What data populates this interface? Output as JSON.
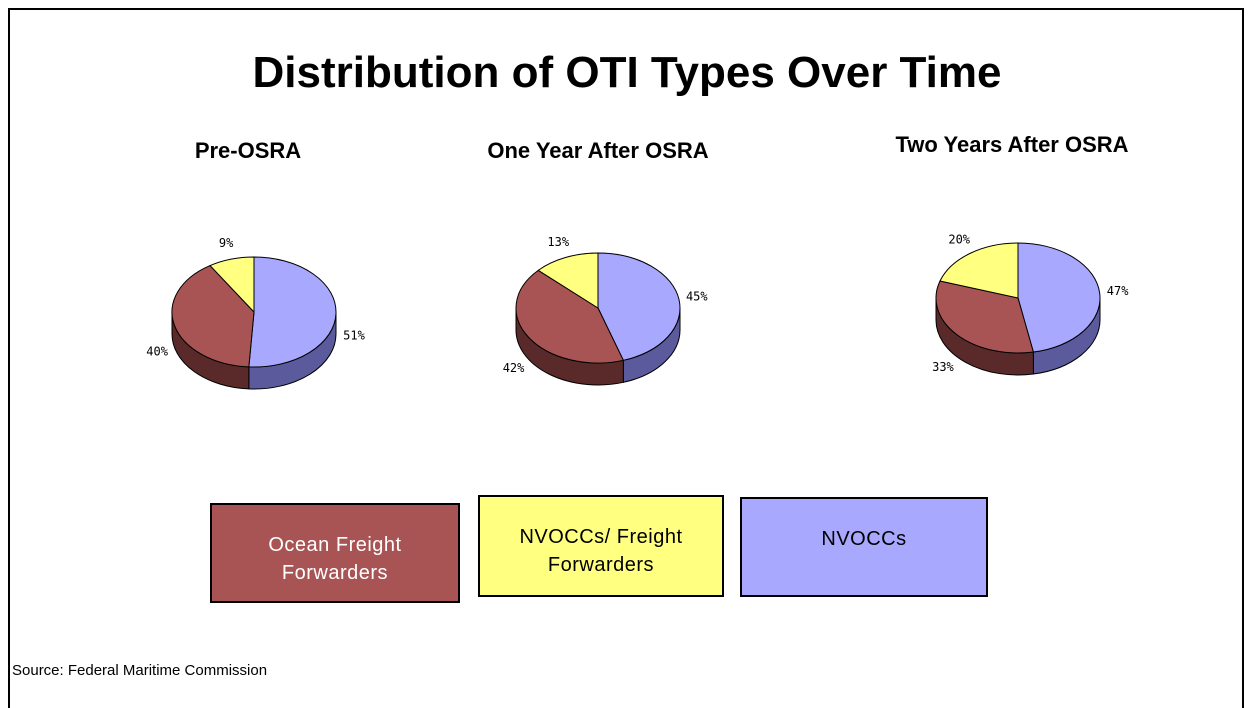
{
  "title": "Distribution of OTI Types Over Time",
  "legend": [
    {
      "name": "Ocean Freight Forwarders",
      "color": "#a85454",
      "side_color": "#5a2a2a",
      "text_color": "#ffffff"
    },
    {
      "name": "NVOCCs/ Freight Forwarders",
      "color": "#ffff80",
      "side_color": "#7a7a30",
      "text_color": "#000000"
    },
    {
      "name": "NVOCCs",
      "color": "#a8a8ff",
      "side_color": "#5a5a9c",
      "text_color": "#000000"
    }
  ],
  "chart_data": [
    {
      "type": "pie",
      "title": "Pre-OSRA",
      "values": [
        40,
        9,
        51
      ],
      "value_labels": [
        "40%",
        "9%",
        "51%"
      ]
    },
    {
      "type": "pie",
      "title": "One Year After OSRA",
      "values": [
        42,
        13,
        45
      ],
      "value_labels": [
        "42%",
        "13%",
        "45%"
      ]
    },
    {
      "type": "pie",
      "title": "Two Years After OSRA",
      "values": [
        33,
        20,
        47
      ],
      "value_labels": [
        "33%",
        "20%",
        "47%"
      ]
    }
  ],
  "source": "Source: Federal Maritime Commission"
}
